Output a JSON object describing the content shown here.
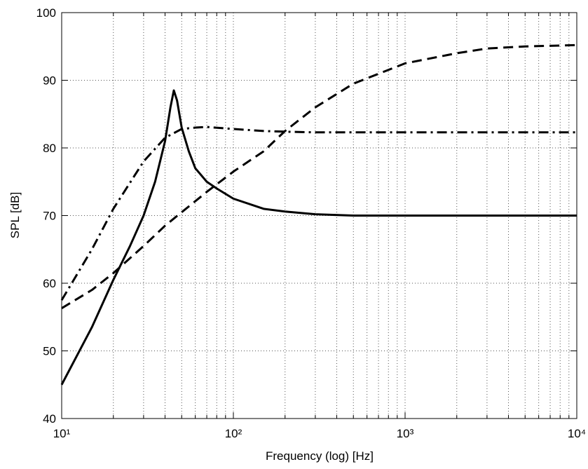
{
  "chart_data": {
    "type": "line",
    "xlabel": "Frequency (log) [Hz]",
    "ylabel": "SPL [dB]",
    "xscale": "log",
    "grid": true,
    "xlim": [
      10,
      10000
    ],
    "ylim": [
      40,
      100
    ],
    "xticks": [
      {
        "value": 10,
        "label": "10¹"
      },
      {
        "value": 100,
        "label": "10²"
      },
      {
        "value": 1000,
        "label": "10³"
      },
      {
        "value": 10000,
        "label": "10⁴"
      }
    ],
    "xminorticks": [
      20,
      30,
      40,
      50,
      60,
      70,
      80,
      90,
      200,
      300,
      400,
      500,
      600,
      700,
      800,
      900,
      2000,
      3000,
      4000,
      5000,
      6000,
      7000,
      8000,
      9000
    ],
    "yticks": [
      40,
      50,
      60,
      70,
      80,
      90,
      100
    ],
    "series": [
      {
        "color": "#000000",
        "dash": "solid",
        "x": [
          10,
          15,
          20,
          25,
          30,
          35,
          40,
          43,
          45,
          47,
          50,
          55,
          60,
          70,
          80,
          100,
          150,
          200,
          300,
          500,
          1000,
          10000
        ],
        "values": [
          45,
          53.5,
          60.5,
          65.5,
          70,
          75,
          81,
          86,
          88.5,
          87,
          83,
          79.5,
          77,
          75,
          74,
          72.5,
          71,
          70.6,
          70.2,
          70,
          70,
          70
        ]
      },
      {
        "color": "#000000",
        "dash": "dashed",
        "x": [
          10,
          15,
          20,
          30,
          40,
          50,
          70,
          100,
          150,
          200,
          300,
          500,
          1000,
          2000,
          3000,
          5000,
          10000
        ],
        "values": [
          56.3,
          59,
          61.5,
          65.5,
          68.5,
          70.5,
          73.5,
          76.5,
          79.5,
          82.5,
          86,
          89.5,
          92.5,
          94,
          94.7,
          95,
          95.2
        ]
      },
      {
        "color": "#000000",
        "dash": "dashdot",
        "x": [
          10,
          15,
          20,
          30,
          40,
          50,
          60,
          70,
          100,
          150,
          200,
          300,
          1000,
          10000
        ],
        "values": [
          57.5,
          65,
          71,
          78,
          81.5,
          82.8,
          83,
          83.1,
          82.8,
          82.5,
          82.4,
          82.3,
          82.3,
          82.3
        ]
      }
    ]
  }
}
